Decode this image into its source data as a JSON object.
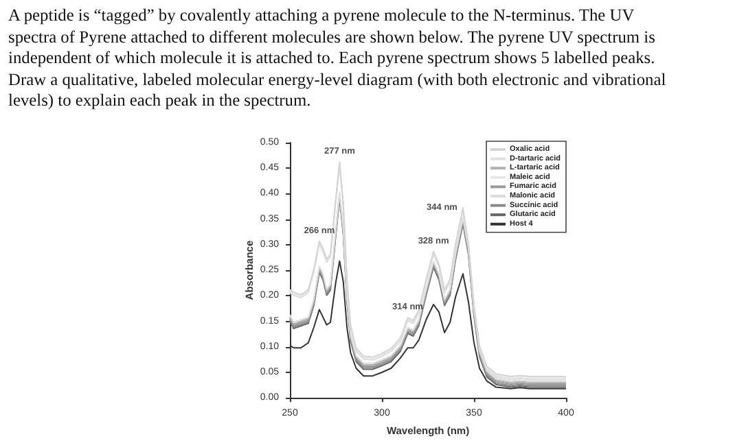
{
  "chart_data": {
    "type": "line",
    "title": "A peptide is “tagged” by covalently attaching a pyrene molecule to the N-terminus. The UV spectra of Pyrene attached to different molecules are shown below. The pyrene UV spectrum is independent of which molecule it is attached to. Each pyrene spectrum shows 5 labelled peaks. Draw a qualitative, labeled molecular energy-level diagram (with both electronic and vibrational levels) to explain each peak in the spectrum.",
    "xlabel": "Wavelength (nm)",
    "ylabel": "Absorbance",
    "x": [
      250,
      252,
      256,
      260,
      263,
      266,
      268,
      270,
      272,
      275,
      277,
      279,
      281,
      283,
      286,
      290,
      295,
      300,
      305,
      310,
      314,
      317,
      320,
      324,
      328,
      331,
      334,
      337,
      340,
      344,
      347,
      350,
      353,
      357,
      362,
      370,
      375,
      380,
      390,
      400
    ],
    "series": [
      {
        "name": "Oxalic acid",
        "color": "#d4d4d4",
        "values": [
          0.212,
          0.207,
          0.202,
          0.212,
          0.252,
          0.307,
          0.292,
          0.272,
          0.282,
          0.392,
          0.462,
          0.382,
          0.232,
          0.142,
          0.097,
          0.082,
          0.08,
          0.087,
          0.097,
          0.117,
          0.157,
          0.152,
          0.172,
          0.232,
          0.287,
          0.262,
          0.212,
          0.232,
          0.302,
          0.372,
          0.302,
          0.182,
          0.102,
          0.062,
          0.047,
          0.042,
          0.044,
          0.042,
          0.042,
          0.042
        ]
      },
      {
        "name": "D-tartaric acid",
        "color": "#e0e0e0",
        "values": [
          0.163,
          0.148,
          0.153,
          0.158,
          0.193,
          0.258,
          0.243,
          0.213,
          0.223,
          0.333,
          0.403,
          0.333,
          0.203,
          0.123,
          0.083,
          0.068,
          0.068,
          0.075,
          0.083,
          0.103,
          0.138,
          0.133,
          0.153,
          0.213,
          0.268,
          0.243,
          0.193,
          0.213,
          0.283,
          0.353,
          0.293,
          0.173,
          0.093,
          0.053,
          0.038,
          0.033,
          0.035,
          0.033,
          0.033,
          0.033
        ]
      },
      {
        "name": "L-tartaric acid",
        "color": "#b0b0b0",
        "values": [
          0.16,
          0.145,
          0.15,
          0.155,
          0.19,
          0.255,
          0.24,
          0.21,
          0.22,
          0.33,
          0.4,
          0.33,
          0.2,
          0.12,
          0.08,
          0.065,
          0.065,
          0.072,
          0.08,
          0.1,
          0.135,
          0.13,
          0.15,
          0.21,
          0.265,
          0.24,
          0.19,
          0.21,
          0.28,
          0.35,
          0.29,
          0.17,
          0.09,
          0.05,
          0.035,
          0.03,
          0.032,
          0.03,
          0.03,
          0.03
        ]
      },
      {
        "name": "Maleic acid",
        "color": "#e6e6e6",
        "values": [
          0.209,
          0.204,
          0.199,
          0.209,
          0.249,
          0.304,
          0.289,
          0.269,
          0.279,
          0.389,
          0.459,
          0.379,
          0.229,
          0.139,
          0.094,
          0.079,
          0.077,
          0.084,
          0.094,
          0.114,
          0.154,
          0.149,
          0.169,
          0.229,
          0.284,
          0.259,
          0.209,
          0.229,
          0.299,
          0.369,
          0.299,
          0.179,
          0.099,
          0.059,
          0.044,
          0.039,
          0.041,
          0.039,
          0.039,
          0.039
        ]
      },
      {
        "name": "Fumaric acid",
        "color": "#999999",
        "values": [
          0.157,
          0.142,
          0.147,
          0.152,
          0.187,
          0.252,
          0.237,
          0.207,
          0.217,
          0.327,
          0.397,
          0.327,
          0.197,
          0.117,
          0.077,
          0.062,
          0.062,
          0.069,
          0.077,
          0.097,
          0.132,
          0.127,
          0.147,
          0.207,
          0.262,
          0.237,
          0.187,
          0.207,
          0.277,
          0.347,
          0.287,
          0.167,
          0.087,
          0.047,
          0.032,
          0.027,
          0.029,
          0.027,
          0.027,
          0.027
        ]
      },
      {
        "name": "Malonic acid",
        "color": "#dcdcdc",
        "values": [
          0.206,
          0.201,
          0.196,
          0.206,
          0.246,
          0.301,
          0.286,
          0.266,
          0.276,
          0.386,
          0.456,
          0.376,
          0.226,
          0.136,
          0.091,
          0.076,
          0.074,
          0.081,
          0.091,
          0.111,
          0.151,
          0.146,
          0.166,
          0.226,
          0.281,
          0.256,
          0.206,
          0.226,
          0.296,
          0.366,
          0.296,
          0.176,
          0.096,
          0.056,
          0.041,
          0.036,
          0.038,
          0.036,
          0.036,
          0.036
        ]
      },
      {
        "name": "Succinic acid",
        "color": "#888888",
        "values": [
          0.154,
          0.139,
          0.144,
          0.149,
          0.184,
          0.249,
          0.234,
          0.204,
          0.214,
          0.324,
          0.394,
          0.324,
          0.194,
          0.114,
          0.074,
          0.059,
          0.059,
          0.066,
          0.074,
          0.094,
          0.129,
          0.124,
          0.144,
          0.204,
          0.259,
          0.234,
          0.184,
          0.204,
          0.274,
          0.344,
          0.284,
          0.164,
          0.084,
          0.044,
          0.029,
          0.024,
          0.026,
          0.024,
          0.024,
          0.024
        ]
      },
      {
        "name": "Glutaric acid",
        "color": "#666666",
        "values": [
          0.151,
          0.136,
          0.141,
          0.146,
          0.181,
          0.246,
          0.231,
          0.201,
          0.211,
          0.321,
          0.391,
          0.321,
          0.191,
          0.111,
          0.071,
          0.056,
          0.056,
          0.063,
          0.071,
          0.091,
          0.126,
          0.121,
          0.141,
          0.201,
          0.256,
          0.231,
          0.181,
          0.201,
          0.271,
          0.341,
          0.281,
          0.161,
          0.081,
          0.041,
          0.026,
          0.021,
          0.023,
          0.021,
          0.021,
          0.021
        ]
      },
      {
        "name": "Host 4",
        "color": "#333333",
        "values": [
          0.103,
          0.098,
          0.098,
          0.108,
          0.138,
          0.173,
          0.158,
          0.143,
          0.148,
          0.228,
          0.268,
          0.228,
          0.138,
          0.088,
          0.058,
          0.043,
          0.043,
          0.05,
          0.058,
          0.078,
          0.098,
          0.098,
          0.113,
          0.153,
          0.183,
          0.168,
          0.128,
          0.148,
          0.198,
          0.243,
          0.188,
          0.108,
          0.058,
          0.033,
          0.021,
          0.018,
          0.02,
          0.018,
          0.018,
          0.018
        ]
      }
    ],
    "annotations": [
      {
        "text": "277 nm",
        "x": 277,
        "y": 0.462
      },
      {
        "text": "266 nm",
        "x": 266,
        "y": 0.307
      },
      {
        "text": "314 nm",
        "x": 314,
        "y": 0.157
      },
      {
        "text": "328 nm",
        "x": 328,
        "y": 0.287
      },
      {
        "text": "344 nm",
        "x": 344,
        "y": 0.372
      }
    ],
    "xlim": [
      250,
      400
    ],
    "xticks": [
      250,
      300,
      350,
      400
    ],
    "ylim": [
      0,
      0.5
    ],
    "yticks": [
      {
        "value": 0,
        "label": "0.00"
      },
      0.05,
      {
        "value": 0.1,
        "label": "0.10"
      },
      0.15,
      {
        "value": 0.2,
        "label": "0.20"
      },
      0.25,
      {
        "value": 0.3,
        "label": "0.30"
      },
      0.35,
      {
        "value": 0.4,
        "label": "0.40"
      },
      0.45,
      {
        "value": 0.5,
        "label": "0.50"
      }
    ],
    "grid": false,
    "legend": "top right",
    "marker": "none",
    "line_style": "solid"
  }
}
